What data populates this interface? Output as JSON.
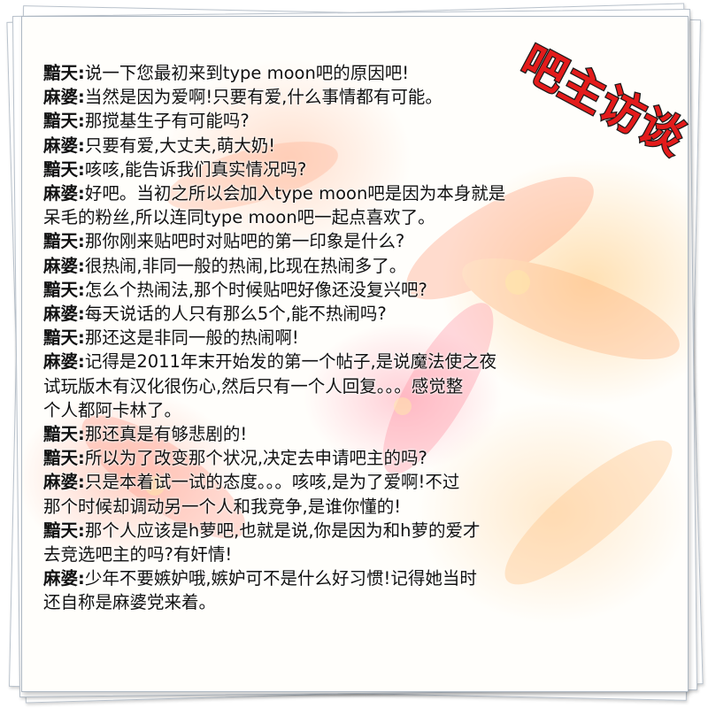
{
  "badge": {
    "text": "吧主访谈",
    "color": "#e31b1b",
    "outline": "#1a1a1a"
  },
  "speakers": {
    "a": "黯天",
    "b": "麻婆"
  },
  "dialogue": [
    {
      "speaker": "黯天",
      "lines": [
        "说一下您最初来到type moon吧的原因吧!"
      ]
    },
    {
      "speaker": "麻婆",
      "lines": [
        "当然是因为爱啊!只要有爱,什么事情都有可能。"
      ]
    },
    {
      "speaker": "黯天",
      "lines": [
        "那搅基生子有可能吗?"
      ]
    },
    {
      "speaker": "麻婆",
      "lines": [
        "只要有爱,大丈夫,萌大奶!"
      ]
    },
    {
      "speaker": "黯天",
      "lines": [
        "咳咳,能告诉我们真实情况吗?"
      ]
    },
    {
      "speaker": "麻婆",
      "lines": [
        "好吧。当初之所以会加入type moon吧是因为本身就是",
        "呆毛的粉丝,所以连同type moon吧一起点喜欢了。"
      ]
    },
    {
      "speaker": "黯天",
      "lines": [
        "那你刚来贴吧时对贴吧的第一印象是什么?"
      ]
    },
    {
      "speaker": "麻婆",
      "lines": [
        "很热闹,非同一般的热闹,比现在热闹多了。"
      ]
    },
    {
      "speaker": "黯天",
      "lines": [
        "怎么个热闹法,那个时候贴吧好像还没复兴吧?"
      ]
    },
    {
      "speaker": "麻婆",
      "lines": [
        "每天说话的人只有那么5个,能不热闹吗?"
      ]
    },
    {
      "speaker": "黯天",
      "lines": [
        "那还这是非同一般的热闹啊!"
      ]
    },
    {
      "speaker": "麻婆",
      "lines": [
        "记得是2011年末开始发的第一个帖子,是说魔法使之夜",
        "试玩版木有汉化很伤心,然后只有一个人回复。。。感觉整",
        "个人都阿卡林了。"
      ]
    },
    {
      "speaker": "黯天",
      "lines": [
        "那还真是有够悲剧的!"
      ]
    },
    {
      "speaker": "黯天",
      "lines": [
        "所以为了改变那个状况,决定去申请吧主的吗?"
      ]
    },
    {
      "speaker": "麻婆",
      "lines": [
        "只是本着试一试的态度。。。咳咳,是为了爱啊!不过",
        "那个时候却调动另一个人和我竞争,是谁你懂的!"
      ]
    },
    {
      "speaker": "黯天",
      "lines": [
        "那个人应该是h萝吧,也就是说,你是因为和h萝的爱才",
        "去竞选吧主的吗?有奸情!"
      ]
    },
    {
      "speaker": "麻婆",
      "lines": [
        "少年不要嫉妒哦,嫉妒可不是什么好习惯!记得她当时",
        "还自称是麻婆党来着。"
      ]
    }
  ]
}
